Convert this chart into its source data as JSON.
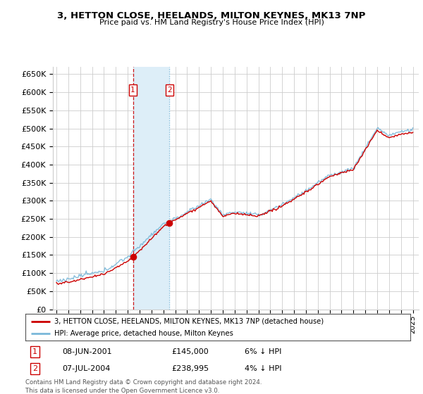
{
  "title": "3, HETTON CLOSE, HEELANDS, MILTON KEYNES, MK13 7NP",
  "subtitle": "Price paid vs. HM Land Registry's House Price Index (HPI)",
  "ytick_labels": [
    "£0",
    "£50K",
    "£100K",
    "£150K",
    "£200K",
    "£250K",
    "£300K",
    "£350K",
    "£400K",
    "£450K",
    "£500K",
    "£550K",
    "£600K",
    "£650K"
  ],
  "ytick_values": [
    0,
    50000,
    100000,
    150000,
    200000,
    250000,
    300000,
    350000,
    400000,
    450000,
    500000,
    550000,
    600000,
    650000
  ],
  "ylim": [
    0,
    670000
  ],
  "xlim_start": 1994.7,
  "xlim_end": 2025.5,
  "t1_date": 2001.44,
  "t1_price": 145000,
  "t1_date_str": "08-JUN-2001",
  "t1_price_str": "£145,000",
  "t1_pct": "6% ↓ HPI",
  "t2_date": 2004.52,
  "t2_price": 238995,
  "t2_date_str": "07-JUL-2004",
  "t2_price_str": "£238,995",
  "t2_pct": "4% ↓ HPI",
  "line1_label": "3, HETTON CLOSE, HEELANDS, MILTON KEYNES, MK13 7NP (detached house)",
  "line2_label": "HPI: Average price, detached house, Milton Keynes",
  "footnote": "Contains HM Land Registry data © Crown copyright and database right 2024.\nThis data is licensed under the Open Government Licence v3.0.",
  "hpi_color": "#7ab8d9",
  "price_color": "#cc0000",
  "highlight_color": "#ddeef8",
  "grid_color": "#cccccc",
  "bg_color": "#ffffff",
  "vline1_color": "#cc0000",
  "vline2_color": "#7ab8d9"
}
